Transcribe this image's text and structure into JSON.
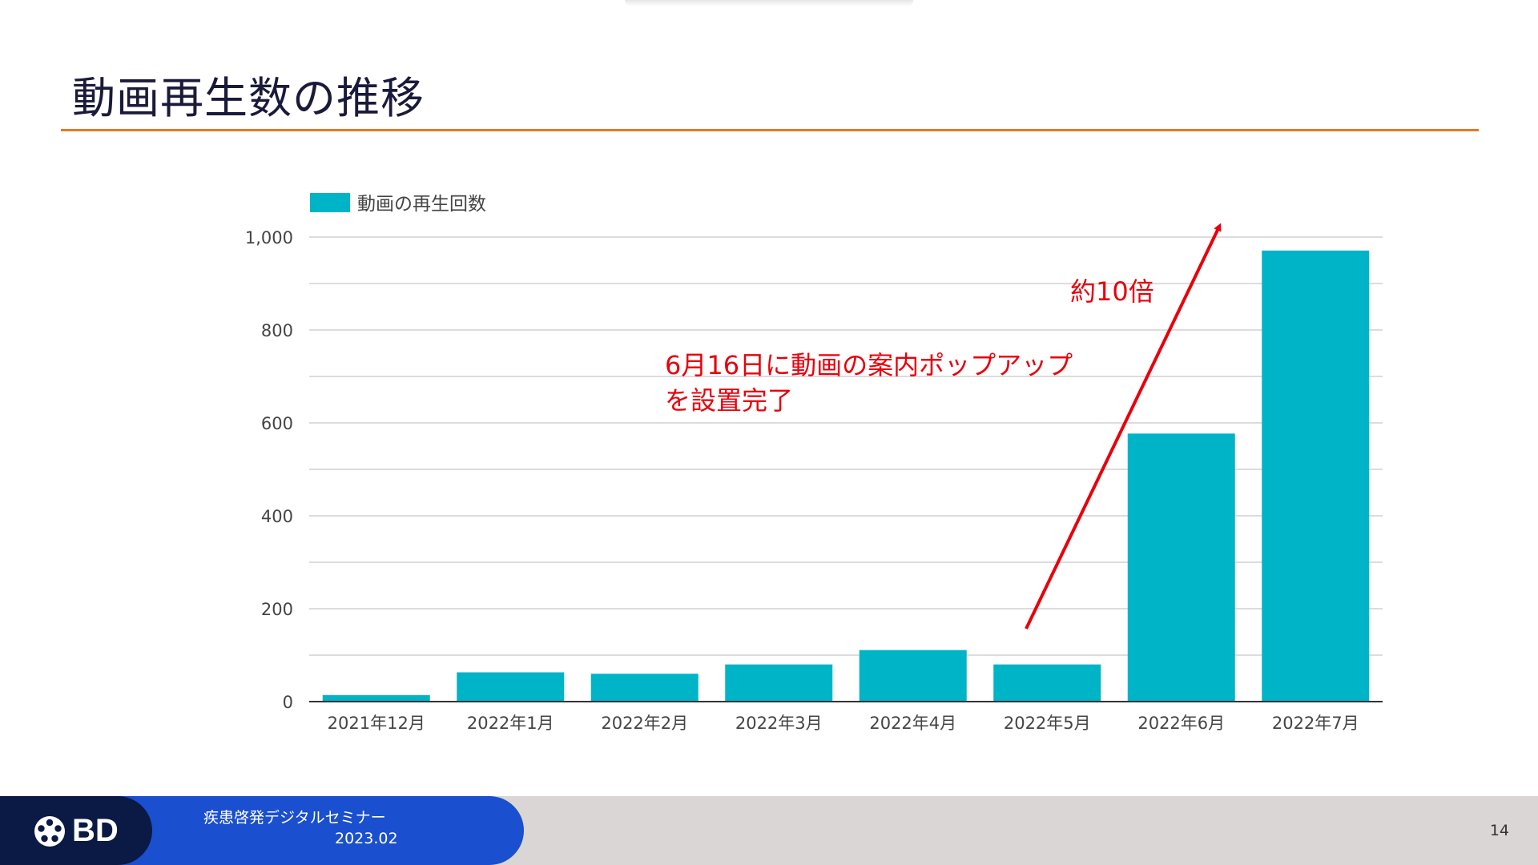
{
  "slide": {
    "title": "動画再生数の推移",
    "page_number": "14"
  },
  "footer": {
    "logo_text": "BD",
    "seminar_title": "疾患啓発デジタルセミナー",
    "date": "2023.02"
  },
  "annotations": {
    "setup_note_line1": "6月16日に動画の案内ポップアップ",
    "setup_note_line2": "を設置完了",
    "growth_note": "約10倍",
    "color": "#e8000b"
  },
  "colors": {
    "bar": "#00b4c8",
    "accent_rule": "#e87722",
    "footer_blue": "#1a4fcf",
    "footer_navy": "#0a1a44",
    "footer_gray": "#d9d6d5"
  },
  "chart_data": {
    "type": "bar",
    "categories": [
      "2021年12月",
      "2022年1月",
      "2022年2月",
      "2022年3月",
      "2022年4月",
      "2022年5月",
      "2022年6月",
      "2022年7月"
    ],
    "series": [
      {
        "name": "動画の再生回数",
        "values": [
          14,
          63,
          60,
          80,
          111,
          80,
          577,
          971
        ]
      }
    ],
    "ylim": [
      0,
      1000
    ],
    "yticks": [
      0,
      200,
      400,
      600,
      800,
      1000
    ],
    "ytick_labels": [
      "0",
      "200",
      "400",
      "600",
      "800",
      "1,000"
    ],
    "grid": true,
    "legend": "top-left"
  }
}
